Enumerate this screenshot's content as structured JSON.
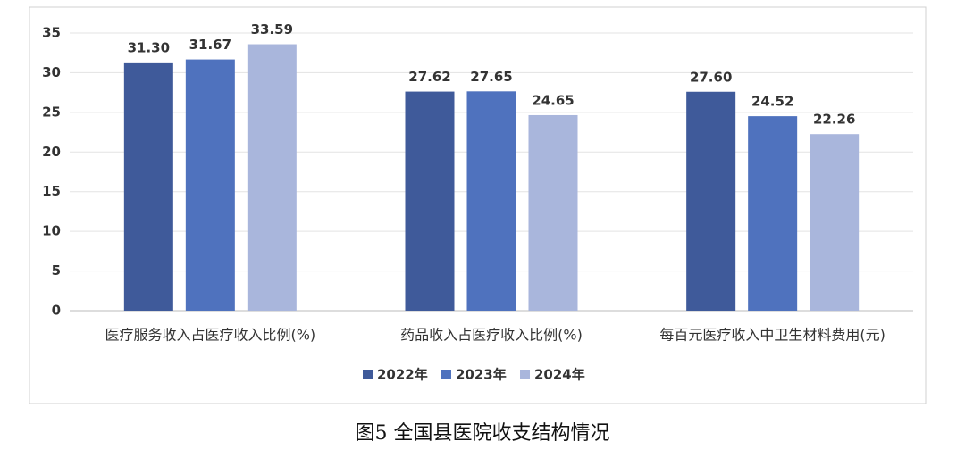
{
  "chart_data": {
    "type": "bar",
    "categories": [
      "医疗服务收入占医疗收入比例(%)",
      "药品收入占医疗收入比例(%)",
      "每百元医疗收入中卫生材料费用(元)"
    ],
    "series": [
      {
        "name": "2022年",
        "color": "#3f5a9a",
        "values": [
          31.3,
          27.62,
          27.6
        ],
        "value_labels": [
          "31.30",
          "27.62",
          "27.60"
        ]
      },
      {
        "name": "2023年",
        "color": "#4f72be",
        "values": [
          31.67,
          27.65,
          24.52
        ],
        "value_labels": [
          "31.67",
          "27.65",
          "24.52"
        ]
      },
      {
        "name": "2024年",
        "color": "#a9b6dc",
        "values": [
          33.59,
          24.65,
          22.26
        ],
        "value_labels": [
          "33.59",
          "24.65",
          "22.26"
        ]
      }
    ],
    "ylim": [
      0,
      35
    ],
    "yticks": [
      0,
      5,
      10,
      15,
      20,
      25,
      30,
      35
    ],
    "grid": true,
    "legend": "bottom"
  },
  "caption": "图5  全国县医院收支结构情况"
}
